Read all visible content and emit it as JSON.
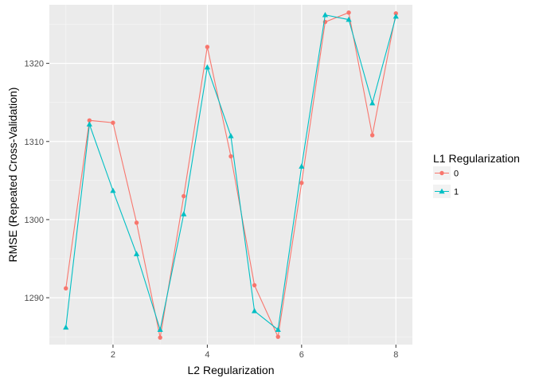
{
  "chart_data": {
    "type": "line",
    "xlabel": "L2 Regularization",
    "ylabel": "RMSE (Repeated Cross-Validation)",
    "xlim": [
      0.65,
      8.35
    ],
    "ylim": [
      1284.0,
      1327.5
    ],
    "x_ticks": [
      2,
      4,
      6,
      8
    ],
    "y_ticks": [
      1290,
      1300,
      1310,
      1320
    ],
    "x_tick_labels": [
      "2",
      "4",
      "6",
      "8"
    ],
    "y_tick_labels": [
      "1290",
      "1300",
      "1310",
      "1320"
    ],
    "grid": true,
    "legend": {
      "title": "L1 Regularization",
      "placement": "right"
    },
    "x": [
      1,
      1.5,
      2,
      2.5,
      3,
      3.5,
      4,
      4.5,
      5,
      5.5,
      6,
      6.5,
      7,
      7.5,
      8
    ],
    "series": [
      {
        "name": "0",
        "color": "#f8766d",
        "marker": "circle",
        "values": [
          1291.2,
          1312.7,
          1312.4,
          1299.6,
          1284.9,
          1303.0,
          1322.1,
          1308.1,
          1291.6,
          1285.0,
          1304.7,
          1325.3,
          1326.5,
          1310.8,
          1326.4
        ]
      },
      {
        "name": "1",
        "color": "#00bfc4",
        "marker": "triangle",
        "values": [
          1286.2,
          1312.2,
          1303.7,
          1295.6,
          1285.9,
          1300.7,
          1319.5,
          1310.7,
          1288.3,
          1285.9,
          1306.8,
          1326.2,
          1325.6,
          1314.9,
          1326.0
        ]
      }
    ]
  }
}
